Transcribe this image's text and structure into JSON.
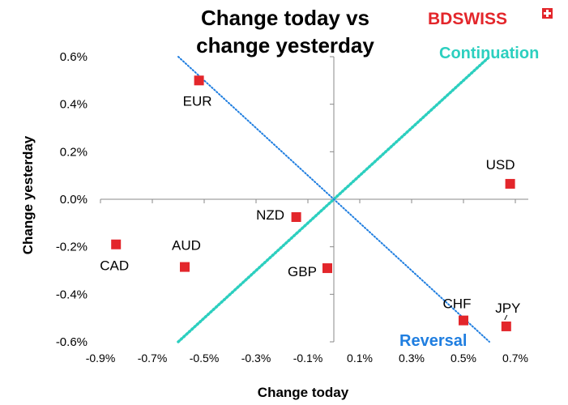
{
  "chart_data": {
    "type": "scatter",
    "title": [
      "Change today vs",
      "change yesterday"
    ],
    "xlabel": "Change today",
    "ylabel": "Change yesterday",
    "xlim": [
      -0.9,
      0.75
    ],
    "ylim": [
      -0.6,
      0.6
    ],
    "x_ticks": [
      "-0.9%",
      "-0.7%",
      "-0.5%",
      "-0.3%",
      "-0.1%",
      "0.1%",
      "0.3%",
      "0.5%",
      "0.7%"
    ],
    "x_tick_values": [
      -0.9,
      -0.7,
      -0.5,
      -0.3,
      -0.1,
      0.1,
      0.3,
      0.5,
      0.7
    ],
    "y_ticks": [
      "-0.6%",
      "-0.4%",
      "-0.2%",
      "0.0%",
      "0.2%",
      "0.4%",
      "0.6%"
    ],
    "y_tick_values": [
      -0.6,
      -0.4,
      -0.2,
      0.0,
      0.2,
      0.4,
      0.6
    ],
    "points": [
      {
        "label": "EUR",
        "x": -0.52,
        "y": 0.5
      },
      {
        "label": "USD",
        "x": 0.68,
        "y": 0.065
      },
      {
        "label": "NZD",
        "x": -0.145,
        "y": -0.075
      },
      {
        "label": "CAD",
        "x": -0.84,
        "y": -0.19
      },
      {
        "label": "AUD",
        "x": -0.575,
        "y": -0.285
      },
      {
        "label": "GBP",
        "x": -0.025,
        "y": -0.29
      },
      {
        "label": "CHF",
        "x": 0.5,
        "y": -0.51
      },
      {
        "label": "JPY",
        "x": 0.665,
        "y": -0.535
      }
    ],
    "lines": [
      {
        "name": "Continuation",
        "color": "#2ccfbf",
        "from": [
          -0.6,
          -0.6
        ],
        "to": [
          0.6,
          0.6
        ]
      },
      {
        "name": "Reversal",
        "color": "#1f7ee0",
        "from": [
          -0.6,
          0.6
        ],
        "to": [
          0.6,
          -0.6
        ]
      }
    ],
    "annotations": {
      "continuation": "Continuation",
      "reversal": "Reversal"
    },
    "marker_color": "#e3262b",
    "grid": false
  },
  "logo": {
    "text_bd": "BD",
    "text_swiss": "SWISS",
    "color": "#e3262b"
  }
}
